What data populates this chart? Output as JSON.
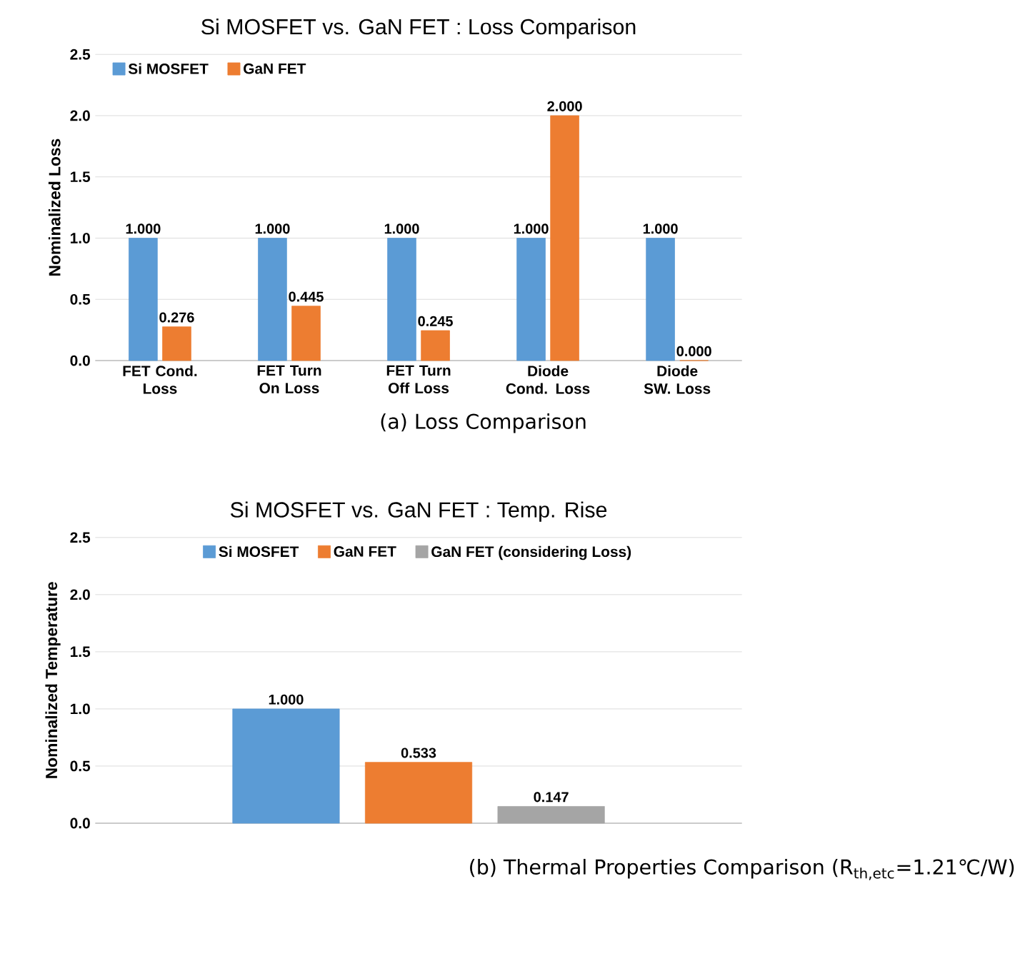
{
  "chart_data": [
    {
      "type": "bar",
      "title": "Si MOSFET vs. GaN FET : Loss Comparison",
      "ylabel": "Nominalized Loss",
      "categories": [
        "FET Cond. Loss",
        "FET Turn On Loss",
        "FET Turn Off Loss",
        "Diode Cond. Loss",
        "Diode SW. Loss"
      ],
      "series": [
        {
          "name": "Si MOSFET",
          "color": "#5b9bd5",
          "values": [
            1.0,
            1.0,
            1.0,
            1.0,
            1.0
          ],
          "value_labels": [
            "1.000",
            "1.000",
            "1.000",
            "1.000",
            "1.000"
          ]
        },
        {
          "name": "GaN FET",
          "color": "#ed7d31",
          "values": [
            0.276,
            0.445,
            0.245,
            2.0,
            0.0
          ],
          "value_labels": [
            "0.276",
            "0.445",
            "0.245",
            "2.000",
            "0.000"
          ]
        }
      ],
      "ylim": [
        0,
        2.5
      ],
      "yticks": [
        {
          "value": 0,
          "label": "0.0"
        },
        {
          "value": 0.5,
          "label": "0.5"
        },
        {
          "value": 1,
          "label": "1.0"
        },
        {
          "value": 1.5,
          "label": "1.5"
        },
        {
          "value": 2,
          "label": "2.0"
        },
        {
          "value": 2.5,
          "label": "2.5"
        }
      ],
      "grid": "y",
      "legend": "top left",
      "annotations": [
        "(a) Loss Comparison"
      ]
    },
    {
      "type": "bar",
      "title": "Si MOSFET vs. GaN FET : Temp. Rise",
      "ylabel": "Nominalized Temperature",
      "categories": [
        null
      ],
      "series": [
        {
          "name": "Si MOSFET",
          "color": "#5b9bd5",
          "values": [
            1.0
          ],
          "value_labels": [
            "1.000"
          ]
        },
        {
          "name": "GaN FET",
          "color": "#ed7d31",
          "values": [
            0.533
          ],
          "value_labels": [
            "0.533"
          ]
        },
        {
          "name": "GaN FET (considering Loss)",
          "color": "#a5a5a5",
          "values": [
            0.147
          ],
          "value_labels": [
            "0.147"
          ]
        }
      ],
      "ylim": [
        0,
        2.5
      ],
      "yticks": [
        {
          "value": 0,
          "label": "0.0"
        },
        {
          "value": 0.5,
          "label": "0.5"
        },
        {
          "value": 1,
          "label": "1.0"
        },
        {
          "value": 1.5,
          "label": "1.5"
        },
        {
          "value": 2,
          "label": "2.0"
        },
        {
          "value": 2.5,
          "label": "2.5"
        }
      ],
      "grid": "y",
      "legend": "top",
      "annotations": [
        "(b) Thermal Properties Comparison (R$_{th,etc}$=1.21℃/W)"
      ]
    }
  ]
}
